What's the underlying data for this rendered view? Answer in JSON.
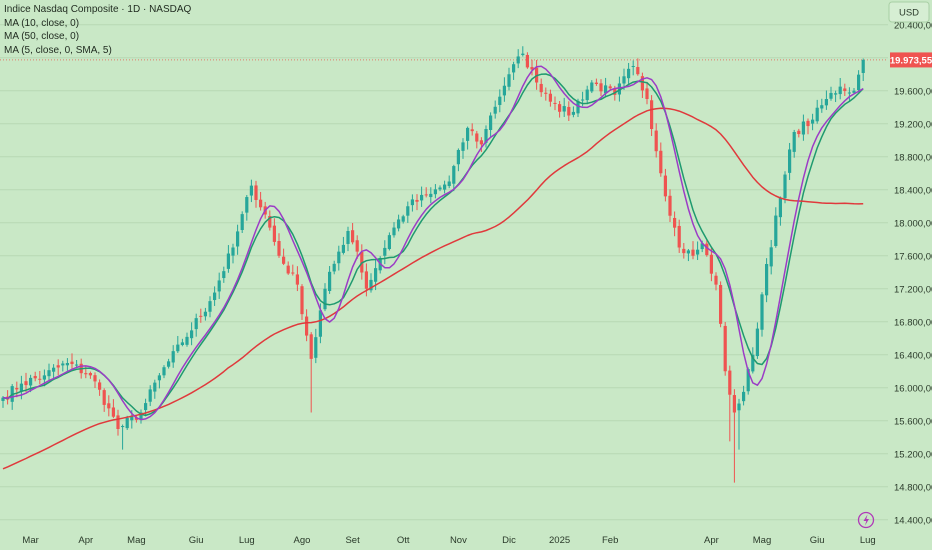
{
  "legend": {
    "title": "Indice Nasdaq Composite · 1D · NASDAQ",
    "indicators": [
      "MA (10, close, 0)",
      "MA (50, close, 0)",
      "MA (5, close, 0, SMA, 5)"
    ]
  },
  "currency_button": "USD",
  "last_price_label": "19.973,55",
  "chart_data": {
    "type": "candlestick",
    "title": "Indice Nasdaq Composite · 1D · NASDAQ",
    "currency": "USD",
    "ylim": [
      14300,
      20700
    ],
    "y_ticks": [
      {
        "value": 20400,
        "label": "20.400,00"
      },
      {
        "value": 20000,
        "label": "20.000,00"
      },
      {
        "value": 19600,
        "label": "19.600,00"
      },
      {
        "value": 19200,
        "label": "19.200,00"
      },
      {
        "value": 18800,
        "label": "18.800,00"
      },
      {
        "value": 18400,
        "label": "18.400,00"
      },
      {
        "value": 18000,
        "label": "18.000,00"
      },
      {
        "value": 17600,
        "label": "17.600,00"
      },
      {
        "value": 17200,
        "label": "17.200,00"
      },
      {
        "value": 16800,
        "label": "16.800,00"
      },
      {
        "value": 16400,
        "label": "16.400,00"
      },
      {
        "value": 16000,
        "label": "16.000,00"
      },
      {
        "value": 15600,
        "label": "15.600,00"
      },
      {
        "value": 15200,
        "label": "15.200,00"
      },
      {
        "value": 14800,
        "label": "14.800,00"
      },
      {
        "value": 14400,
        "label": "14.400,00"
      }
    ],
    "x_ticks": [
      {
        "index": 6,
        "label": "Mar"
      },
      {
        "index": 18,
        "label": "Apr"
      },
      {
        "index": 29,
        "label": "Mag"
      },
      {
        "index": 42,
        "label": "Giu"
      },
      {
        "index": 53,
        "label": "Lug"
      },
      {
        "index": 65,
        "label": "Ago"
      },
      {
        "index": 76,
        "label": "Set"
      },
      {
        "index": 87,
        "label": "Ott"
      },
      {
        "index": 99,
        "label": "Nov"
      },
      {
        "index": 110,
        "label": "Dic"
      },
      {
        "index": 121,
        "label": "2025"
      },
      {
        "index": 132,
        "label": "Feb"
      },
      {
        "index": 154,
        "label": "Apr"
      },
      {
        "index": 165,
        "label": "Mag"
      },
      {
        "index": 177,
        "label": "Giu"
      },
      {
        "index": 188,
        "label": "Lug"
      }
    ],
    "last_price": 19973.55,
    "anchors": [
      [
        0,
        15880
      ],
      [
        4,
        16050
      ],
      [
        9,
        16150
      ],
      [
        14,
        16300
      ],
      [
        19,
        16150
      ],
      [
        23,
        15750
      ],
      [
        25,
        15500
      ],
      [
        30,
        15700
      ],
      [
        34,
        16150
      ],
      [
        39,
        16550
      ],
      [
        45,
        17050
      ],
      [
        50,
        17700
      ],
      [
        54,
        18450
      ],
      [
        57,
        18100
      ],
      [
        60,
        17600
      ],
      [
        64,
        17250
      ],
      [
        67,
        16350
      ],
      [
        70,
        17200
      ],
      [
        73,
        17650
      ],
      [
        75,
        17900
      ],
      [
        77,
        17650
      ],
      [
        79,
        17200
      ],
      [
        81,
        17450
      ],
      [
        84,
        17850
      ],
      [
        88,
        18200
      ],
      [
        93,
        18350
      ],
      [
        97,
        18500
      ],
      [
        101,
        19150
      ],
      [
        104,
        18950
      ],
      [
        106,
        19300
      ],
      [
        110,
        19800
      ],
      [
        113,
        20050
      ],
      [
        116,
        19700
      ],
      [
        120,
        19450
      ],
      [
        123,
        19300
      ],
      [
        128,
        19700
      ],
      [
        133,
        19550
      ],
      [
        137,
        19900
      ],
      [
        140,
        19500
      ],
      [
        143,
        18600
      ],
      [
        147,
        17700
      ],
      [
        150,
        17600
      ],
      [
        152,
        17750
      ],
      [
        155,
        17250
      ],
      [
        157,
        16200
      ],
      [
        159,
        15700
      ],
      [
        161,
        15950
      ],
      [
        163,
        16400
      ],
      [
        166,
        17500
      ],
      [
        169,
        18300
      ],
      [
        172,
        19100
      ],
      [
        176,
        19250
      ],
      [
        179,
        19500
      ],
      [
        182,
        19650
      ],
      [
        185,
        19600
      ],
      [
        187,
        19973.55
      ]
    ],
    "series": [
      {
        "name": "MA (10, close, 0)",
        "period": 10,
        "color": "#1f9a6f"
      },
      {
        "name": "MA (50, close, 0)",
        "period": 50,
        "color": "#e0393c"
      },
      {
        "name": "MA (5, close, 0, SMA, 5)",
        "period": 5,
        "smooth": 5,
        "color": "#9c3cc6"
      }
    ],
    "candle_colors": {
      "up": "#26a69a",
      "down": "#ef5350"
    }
  }
}
